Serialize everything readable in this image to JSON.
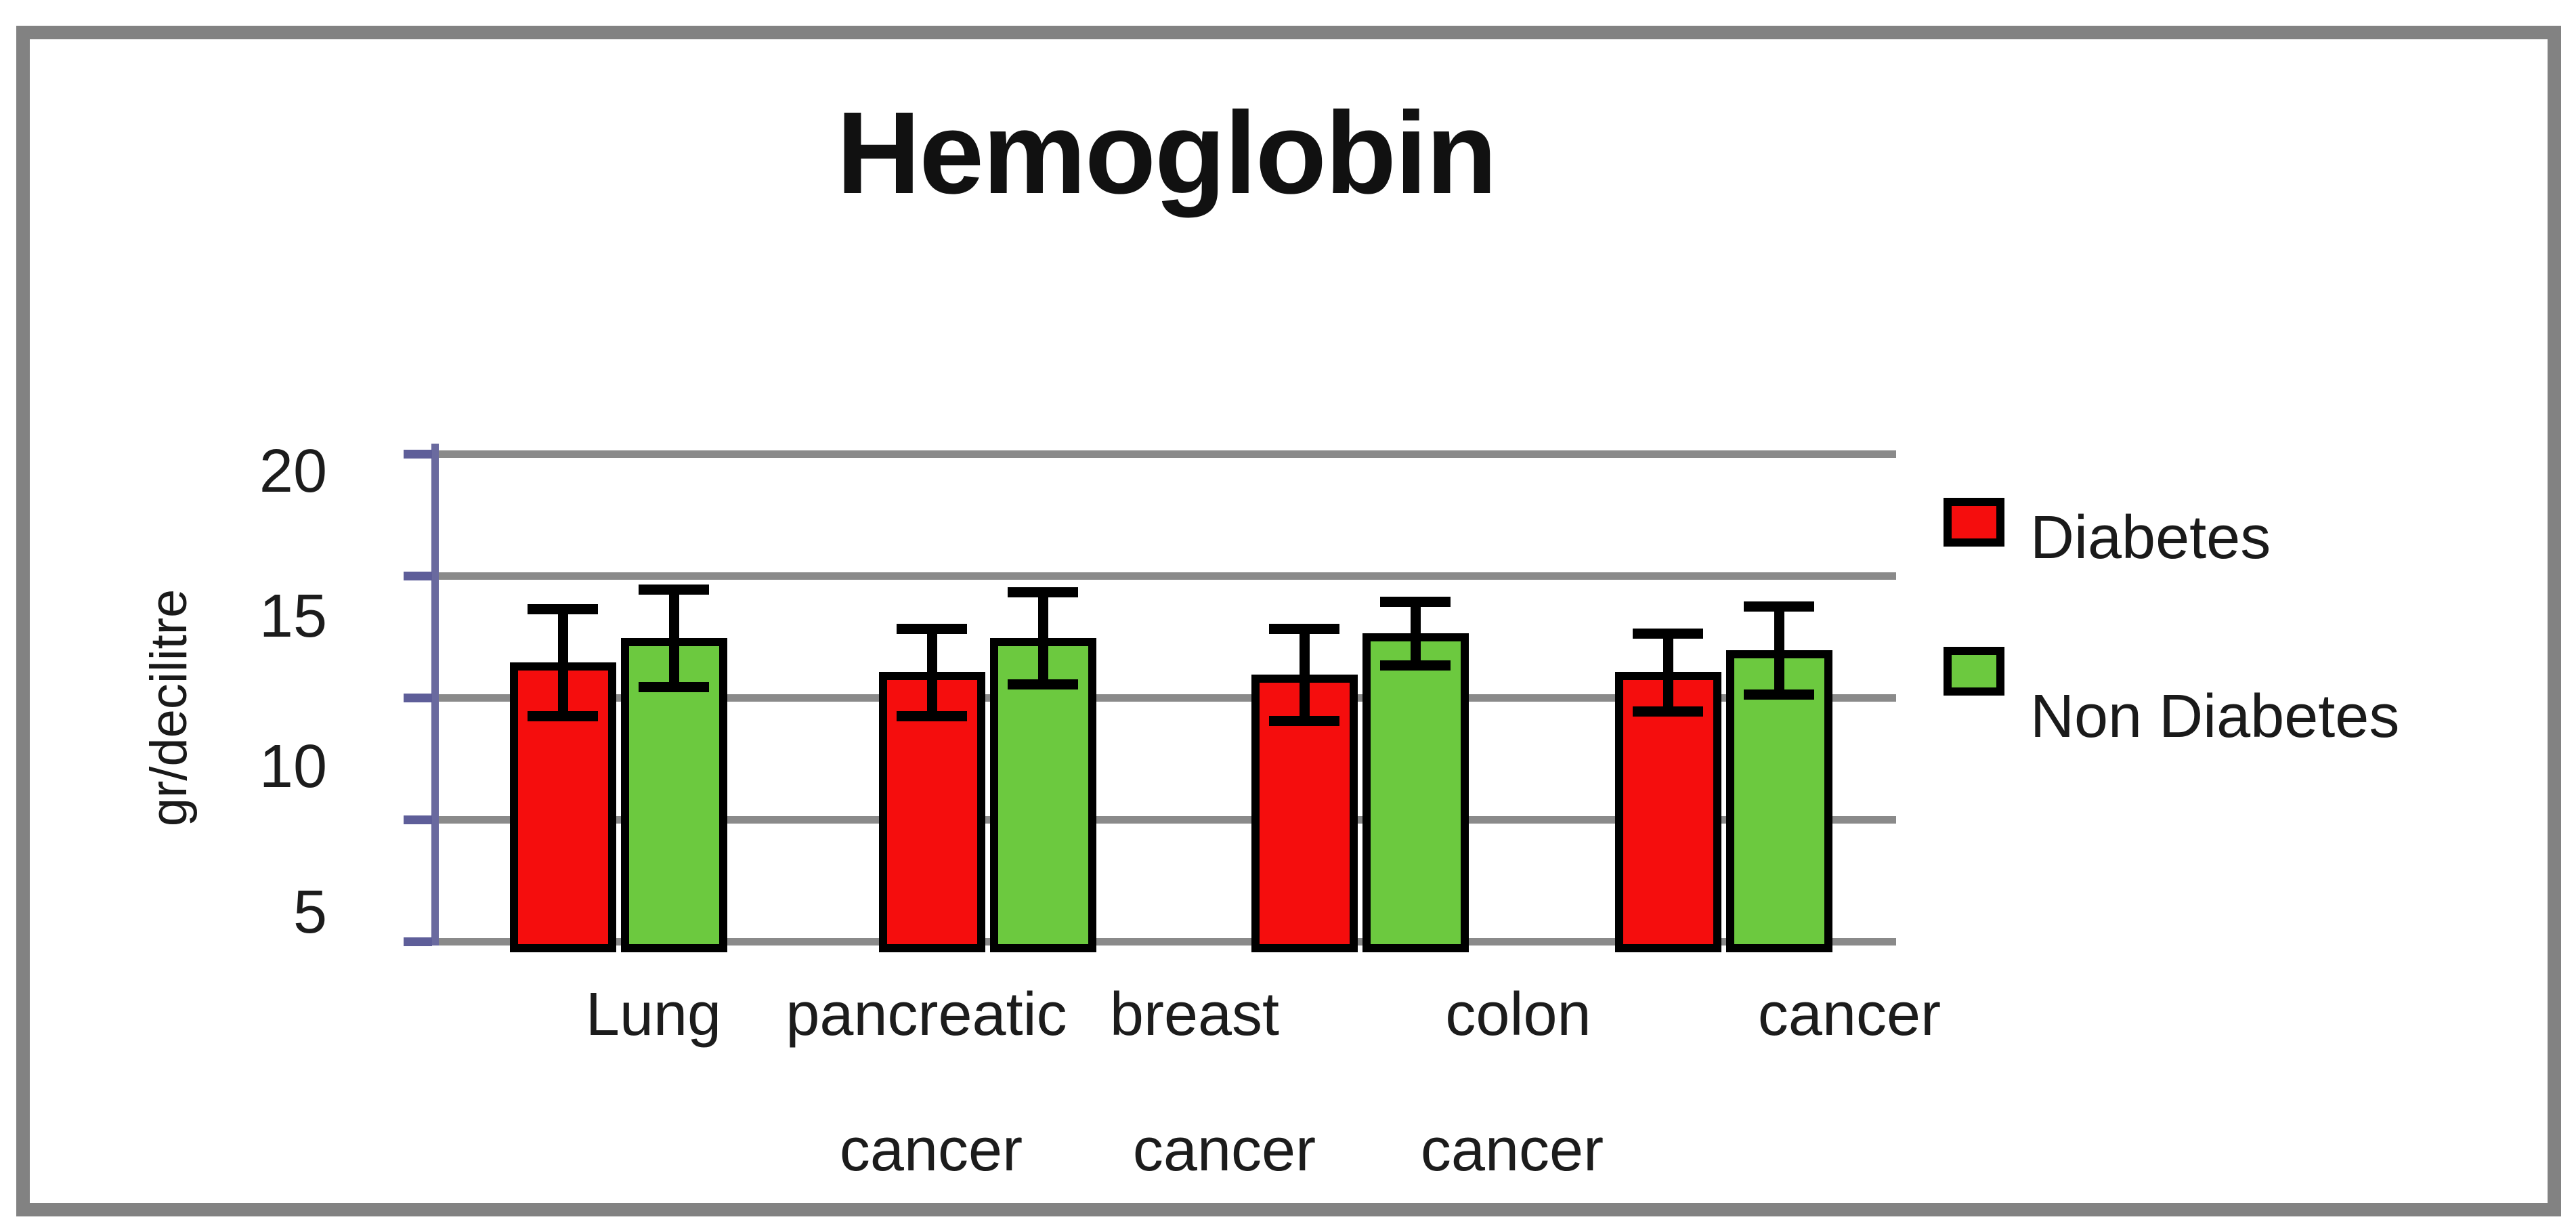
{
  "figure": {
    "title": "Hemoglobin",
    "y_axis": {
      "label": "gr/decilitre",
      "tick_labels": [
        "20",
        "15",
        "10",
        "5"
      ],
      "tick_values": [
        20,
        15,
        10,
        5
      ]
    },
    "x_axis": {
      "row1_labels": [
        "Lung",
        "pancreatic",
        "breast",
        "colon",
        "cancer"
      ],
      "row2_labels": [
        "cancer",
        "cancer",
        "cancer"
      ]
    },
    "legend": [
      {
        "label": "Diabetes",
        "color": "#f50d0d"
      },
      {
        "label": "Non Diabetes",
        "color": "#6cc93f"
      }
    ],
    "colors": {
      "axis_line": "#6a6a9f",
      "tick_mark": "#5e5e99",
      "gridline": "#8a8a8a",
      "border": "#828282",
      "bar_outline": "#000000"
    }
  },
  "chart_data": {
    "type": "bar",
    "title": "Hemoglobin",
    "xlabel": "",
    "ylabel": "gr/decilitre",
    "ylim": [
      0,
      20
    ],
    "grid": true,
    "gridline_values": [
      0,
      5,
      10,
      15,
      20
    ],
    "legend_position": "right",
    "categories": [
      "Lung cancer",
      "pancreatic cancer",
      "breast cancer",
      "colon cancer"
    ],
    "series": [
      {
        "name": "Diabetes",
        "color": "#f50d0d",
        "values": [
          11.5,
          11.1,
          11.0,
          11.1
        ],
        "error": [
          2.2,
          1.8,
          1.9,
          1.6
        ]
      },
      {
        "name": "Non Diabetes",
        "color": "#6cc93f",
        "values": [
          12.5,
          12.5,
          12.7,
          12.0
        ],
        "error": [
          2.0,
          1.9,
          1.3,
          1.8
        ]
      }
    ]
  }
}
